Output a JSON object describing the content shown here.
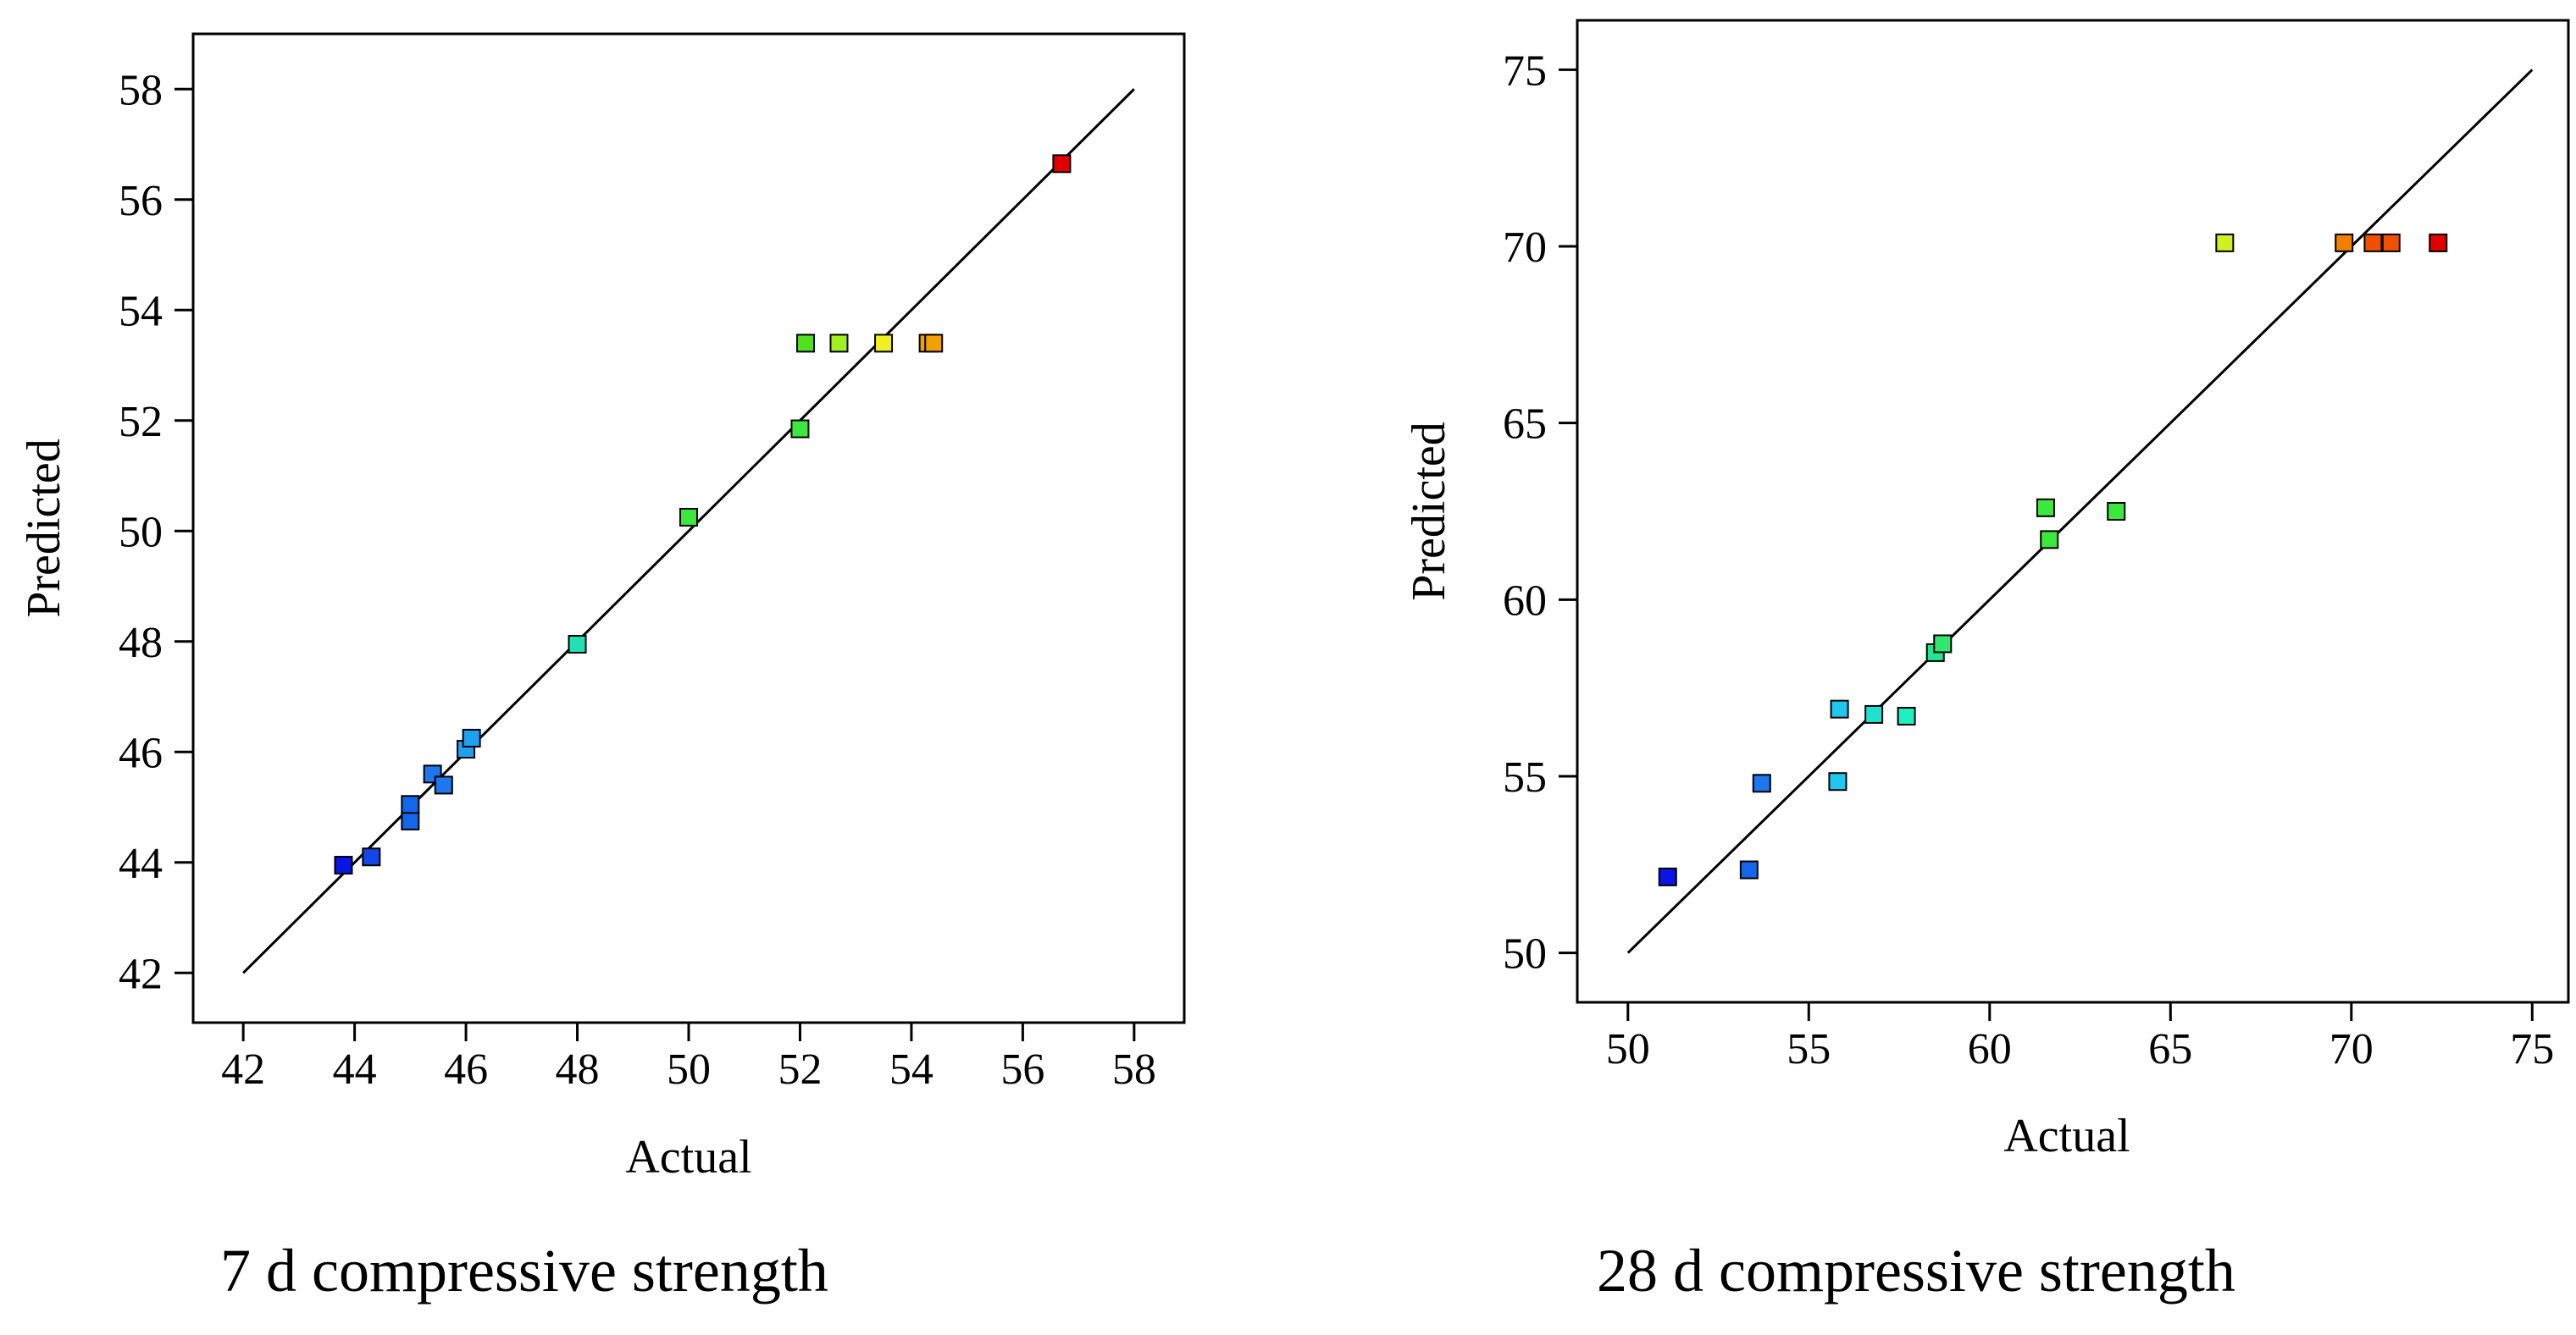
{
  "chart_data": [
    {
      "type": "scatter",
      "title": "",
      "caption": "7 d compressive strength",
      "xlabel": "Actual",
      "ylabel": "Predicted",
      "xlim": [
        41.1,
        58.9
      ],
      "ylim": [
        41.1,
        59.0
      ],
      "xticks": [
        42,
        44,
        46,
        48,
        50,
        52,
        54,
        56,
        58
      ],
      "yticks": [
        42,
        44,
        46,
        48,
        50,
        52,
        54,
        56,
        58
      ],
      "reference_line": {
        "x": [
          42,
          58
        ],
        "y": [
          42,
          58
        ]
      },
      "grid": false,
      "legend": "none",
      "points": [
        {
          "x": 43.8,
          "y": 43.95,
          "color": "#0a14e6"
        },
        {
          "x": 44.3,
          "y": 44.1,
          "color": "#1446e8"
        },
        {
          "x": 45.0,
          "y": 44.75,
          "color": "#1466ea"
        },
        {
          "x": 45.0,
          "y": 45.05,
          "color": "#1466ea"
        },
        {
          "x": 45.4,
          "y": 45.6,
          "color": "#1c78ec"
        },
        {
          "x": 45.6,
          "y": 45.4,
          "color": "#1c78ec"
        },
        {
          "x": 46.0,
          "y": 46.05,
          "color": "#20a0f0"
        },
        {
          "x": 46.1,
          "y": 46.25,
          "color": "#20a0f0"
        },
        {
          "x": 48.0,
          "y": 47.95,
          "color": "#20e0b4"
        },
        {
          "x": 50.0,
          "y": 50.25,
          "color": "#3ce83c"
        },
        {
          "x": 52.0,
          "y": 51.85,
          "color": "#3ce83c"
        },
        {
          "x": 52.1,
          "y": 53.4,
          "color": "#50e020"
        },
        {
          "x": 52.7,
          "y": 53.4,
          "color": "#a0f020"
        },
        {
          "x": 53.5,
          "y": 53.4,
          "color": "#f0f020"
        },
        {
          "x": 54.3,
          "y": 53.4,
          "color": "#f0a000"
        },
        {
          "x": 54.4,
          "y": 53.4,
          "color": "#f0a000"
        },
        {
          "x": 56.7,
          "y": 56.65,
          "color": "#e00000"
        }
      ]
    },
    {
      "type": "scatter",
      "title": "",
      "caption": "28 d compressive strength",
      "xlabel": "Actual",
      "ylabel": "Predicted",
      "xlim": [
        48.6,
        76.0
      ],
      "ylim": [
        48.6,
        76.4
      ],
      "xticks": [
        50,
        55,
        60,
        65,
        70,
        75
      ],
      "yticks": [
        50,
        55,
        60,
        65,
        70,
        75
      ],
      "reference_line": {
        "x": [
          50,
          75
        ],
        "y": [
          50,
          75
        ]
      },
      "grid": false,
      "legend": "none",
      "points": [
        {
          "x": 51.1,
          "y": 52.15,
          "color": "#0a14e6"
        },
        {
          "x": 53.35,
          "y": 52.35,
          "color": "#1466ea"
        },
        {
          "x": 53.7,
          "y": 54.8,
          "color": "#1c78ec"
        },
        {
          "x": 55.8,
          "y": 54.85,
          "color": "#20c8f0"
        },
        {
          "x": 55.85,
          "y": 56.9,
          "color": "#20c8f0"
        },
        {
          "x": 56.8,
          "y": 56.75,
          "color": "#20e0d0"
        },
        {
          "x": 57.7,
          "y": 56.7,
          "color": "#20f0c0"
        },
        {
          "x": 58.5,
          "y": 58.5,
          "color": "#20e890"
        },
        {
          "x": 58.7,
          "y": 58.75,
          "color": "#30e870"
        },
        {
          "x": 61.55,
          "y": 62.6,
          "color": "#3ce83c"
        },
        {
          "x": 61.65,
          "y": 61.7,
          "color": "#3ce83c"
        },
        {
          "x": 63.5,
          "y": 62.5,
          "color": "#3ce83c"
        },
        {
          "x": 66.5,
          "y": 70.1,
          "color": "#d0f020"
        },
        {
          "x": 69.8,
          "y": 70.1,
          "color": "#f08000"
        },
        {
          "x": 70.6,
          "y": 70.1,
          "color": "#f05000"
        },
        {
          "x": 71.1,
          "y": 70.1,
          "color": "#f05000"
        },
        {
          "x": 72.4,
          "y": 70.1,
          "color": "#e00000"
        }
      ]
    }
  ]
}
